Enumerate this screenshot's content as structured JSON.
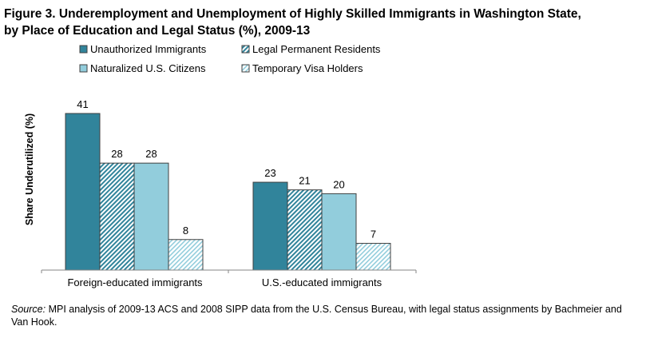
{
  "chart_data": {
    "type": "bar",
    "title": "Figure 3. Underemployment and Unemployment of Highly Skilled Immigrants in Washington State, by Place of Education and Legal Status (%), 2009-13",
    "title_lines": [
      "Figure 3. Underemployment and Unemployment of Highly Skilled Immigrants in Washington State,",
      "by Place of Education and Legal Status (%), 2009-13"
    ],
    "ylabel": "Share Underutilized (%)",
    "xlabel": "",
    "ylim": [
      0,
      41
    ],
    "grid": false,
    "legend_placement": "top",
    "categories": [
      "Foreign-educated immigrants",
      "U.S.-educated immigrants"
    ],
    "series": [
      {
        "name": "Unauthorized Immigrants",
        "values": [
          41,
          23
        ],
        "color": "#31849B",
        "pattern": "solid"
      },
      {
        "name": "Legal Permanent Residents",
        "values": [
          28,
          21
        ],
        "color": "#31849B",
        "pattern": "hatch-dark"
      },
      {
        "name": "Naturalized U.S. Citizens",
        "values": [
          28,
          20
        ],
        "color": "#92CDDC",
        "pattern": "solid"
      },
      {
        "name": "Temporary Visa Holders",
        "values": [
          8,
          7
        ],
        "color": "#92CDDC",
        "pattern": "hatch-light"
      }
    ]
  },
  "source": {
    "label": "Source:",
    "text": " MPI analysis of 2009-13 ACS and 2008 SIPP data from the U.S. Census Bureau, with legal status assignments by Bachmeier and Van Hook."
  }
}
